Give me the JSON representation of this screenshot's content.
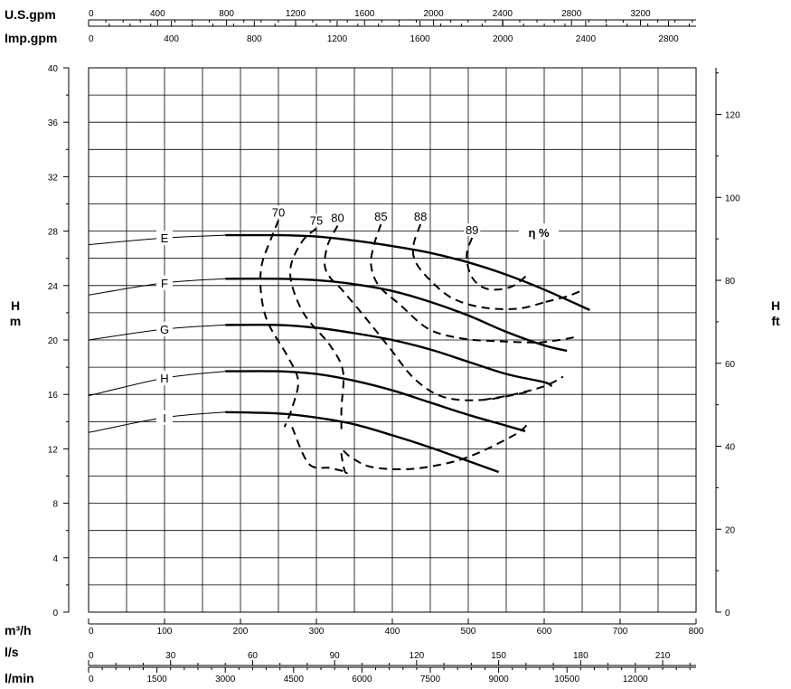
{
  "chart_data": {
    "type": "line",
    "title": "",
    "x_main": {
      "unit": "m³/h",
      "range": [
        0,
        800
      ],
      "ticks": [
        0,
        100,
        200,
        300,
        400,
        500,
        600,
        700,
        800
      ]
    },
    "x_secondary": [
      {
        "unit": "U.S.gpm",
        "ticks": [
          0,
          400,
          800,
          1200,
          1600,
          2000,
          2400,
          2800,
          3200
        ]
      },
      {
        "unit": "Imp.gpm",
        "ticks": [
          0,
          400,
          800,
          1200,
          1600,
          2000,
          2400,
          2800
        ]
      },
      {
        "unit": "l/s",
        "ticks": [
          0,
          30,
          60,
          90,
          120,
          150,
          180,
          210
        ]
      },
      {
        "unit": "l/min",
        "ticks": [
          0,
          1500,
          3000,
          4500,
          6000,
          7500,
          9000,
          10500,
          12000
        ]
      }
    ],
    "y_left": {
      "unit_top": "H",
      "unit_bottom": "m",
      "range": [
        0,
        40
      ],
      "ticks": [
        0,
        4,
        8,
        12,
        16,
        20,
        24,
        28,
        32,
        36,
        40
      ]
    },
    "y_right": {
      "unit_top": "H",
      "unit_bottom": "ft",
      "ticks": [
        0,
        20,
        40,
        60,
        80,
        100,
        120
      ]
    },
    "grid": true,
    "impeller_curves": [
      {
        "label": "E",
        "x": [
          0,
          100,
          180,
          250,
          300,
          350,
          400,
          450,
          500,
          550,
          600,
          660
        ],
        "y": [
          27,
          27.5,
          27.7,
          27.7,
          27.6,
          27.3,
          26.9,
          26.4,
          25.7,
          24.8,
          23.7,
          22.2
        ]
      },
      {
        "label": "F",
        "x": [
          0,
          100,
          180,
          250,
          300,
          350,
          400,
          450,
          500,
          550,
          600,
          630
        ],
        "y": [
          23.3,
          24.2,
          24.5,
          24.5,
          24.4,
          24.1,
          23.6,
          22.8,
          21.8,
          20.6,
          19.6,
          19.2
        ]
      },
      {
        "label": "G",
        "x": [
          0,
          100,
          180,
          250,
          300,
          350,
          400,
          450,
          500,
          550,
          600,
          610
        ],
        "y": [
          20,
          20.8,
          21.1,
          21.1,
          20.9,
          20.5,
          20,
          19.3,
          18.4,
          17.5,
          16.9,
          16.6
        ]
      },
      {
        "label": "H",
        "x": [
          0,
          100,
          180,
          250,
          300,
          350,
          400,
          450,
          500,
          550,
          575
        ],
        "y": [
          15.9,
          17.2,
          17.7,
          17.7,
          17.5,
          17,
          16.3,
          15.4,
          14.5,
          13.7,
          13.3
        ]
      },
      {
        "label": "I",
        "x": [
          0,
          100,
          180,
          250,
          300,
          350,
          400,
          450,
          500,
          540
        ],
        "y": [
          13.2,
          14.3,
          14.7,
          14.6,
          14.3,
          13.8,
          13,
          12.1,
          11.1,
          10.3
        ]
      }
    ],
    "efficiency_title": "η %",
    "efficiency_curves": [
      {
        "label": "70",
        "x": [
          250,
          240,
          228,
          227,
          236,
          262,
          276,
          268,
          258
        ],
        "y": [
          28.8,
          27.4,
          25.5,
          23.5,
          21.3,
          18.8,
          17,
          15,
          13.6
        ]
      },
      {
        "label": "75",
        "x": [
          300,
          282,
          267,
          268,
          285,
          318,
          335,
          333,
          333
        ],
        "y": [
          28.2,
          27.3,
          25.6,
          24,
          21.8,
          19.6,
          17.7,
          15,
          13.2
        ]
      },
      {
        "label": "80",
        "x": [
          328,
          315,
          311,
          318,
          335,
          368,
          398,
          430,
          468,
          520,
          580
        ],
        "y": [
          28.4,
          27,
          25.5,
          24.6,
          23.6,
          21.4,
          19.3,
          17.1,
          15.8,
          15.6,
          16.2
        ]
      },
      {
        "label": "85",
        "x": [
          385,
          376,
          372,
          382,
          410,
          448,
          493,
          543,
          593
        ],
        "y": [
          28.5,
          27,
          25.5,
          24,
          22.6,
          20.8,
          20.1,
          19.9,
          19.8
        ]
      },
      {
        "label": "88",
        "x": [
          437,
          428,
          430,
          448,
          478,
          518,
          565,
          602
        ],
        "y": [
          28.5,
          27,
          25.8,
          24.5,
          23.1,
          22.4,
          22.3,
          22.8
        ]
      },
      {
        "label": "89",
        "x": [
          505,
          498,
          503,
          518,
          538,
          560,
          580
        ],
        "y": [
          27.5,
          26.3,
          24.8,
          23.9,
          23.7,
          24,
          24.9
        ]
      }
    ],
    "efficiency_extensions": [
      {
        "x": [
          268,
          290,
          318,
          340,
          337,
          333,
          345,
          370,
          410,
          450,
          500,
          560,
          580
        ],
        "y": [
          13.6,
          10.9,
          10.6,
          10.3,
          10.4,
          11.9,
          11.4,
          10.7,
          10.5,
          10.7,
          11.4,
          13,
          13.9
        ]
      },
      {
        "x": [
          520,
          560,
          600,
          625
        ],
        "y": [
          15.6,
          16,
          16.6,
          17.3
        ]
      },
      {
        "x": [
          593,
          620,
          640
        ],
        "y": [
          19.8,
          20,
          20.2
        ]
      },
      {
        "x": [
          602,
          630,
          648
        ],
        "y": [
          22.8,
          23.2,
          23.6
        ]
      }
    ]
  }
}
